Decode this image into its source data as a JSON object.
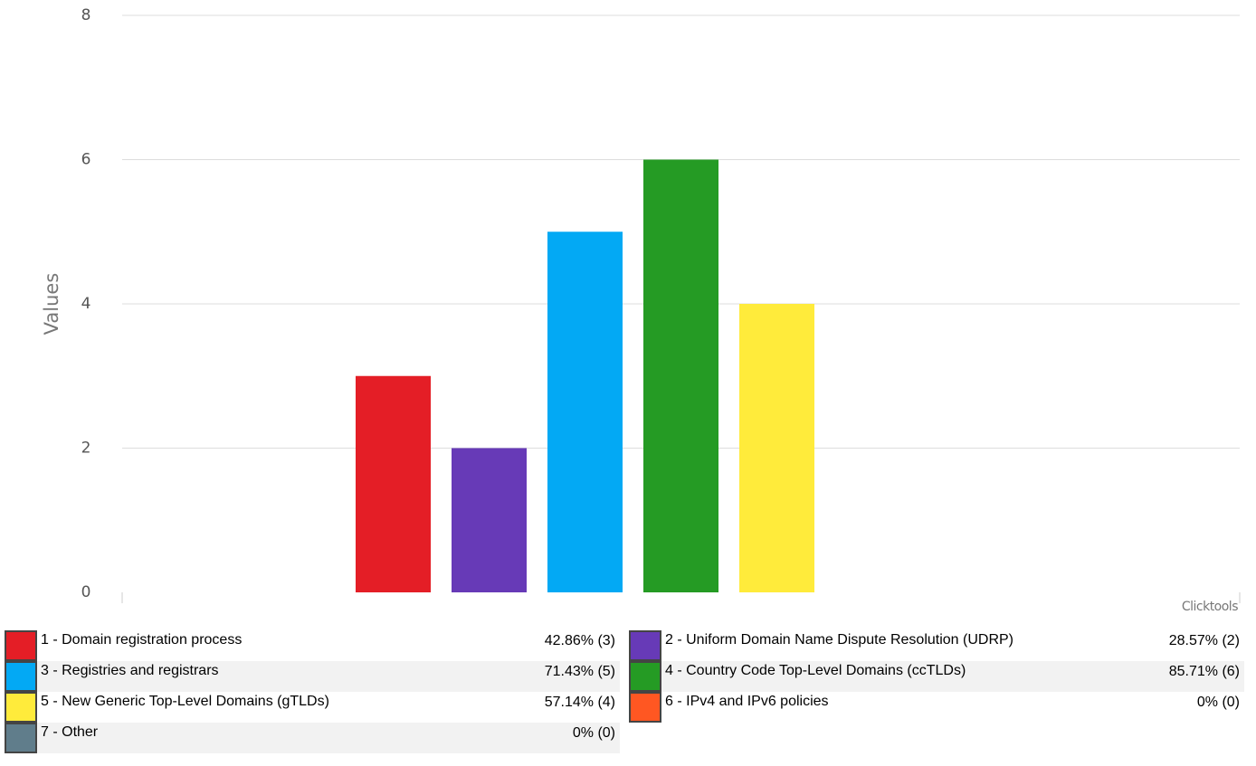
{
  "chart_data": {
    "type": "bar",
    "ylabel": "Values",
    "credit": "Clicktools",
    "categories": [
      "1 - Domain registration process",
      "2 - Uniform Domain Name Dispute Resolution (UDRP)",
      "3 - Registries and registrars",
      "4 - Country Code Top-Level Domains (ccTLDs)",
      "5 - New Generic Top-Level Domains (gTLDs)",
      "6 - IPv4 and IPv6 policies",
      "7 - Other"
    ],
    "values": [
      3,
      2,
      5,
      6,
      4,
      0,
      0
    ],
    "value_labels": [
      "42.86% (3)",
      "28.57% (2)",
      "71.43% (5)",
      "85.71% (6)",
      "57.14% (4)",
      "0% (0)",
      "0% (0)"
    ],
    "colors": [
      "#e41e26",
      "#673ab7",
      "#03a9f4",
      "#259b24",
      "#ffeb3b",
      "#ff5722",
      "#607d8b"
    ],
    "ylim": [
      0,
      8
    ],
    "yticks": [
      0,
      2,
      4,
      6,
      8
    ],
    "grid": true
  }
}
